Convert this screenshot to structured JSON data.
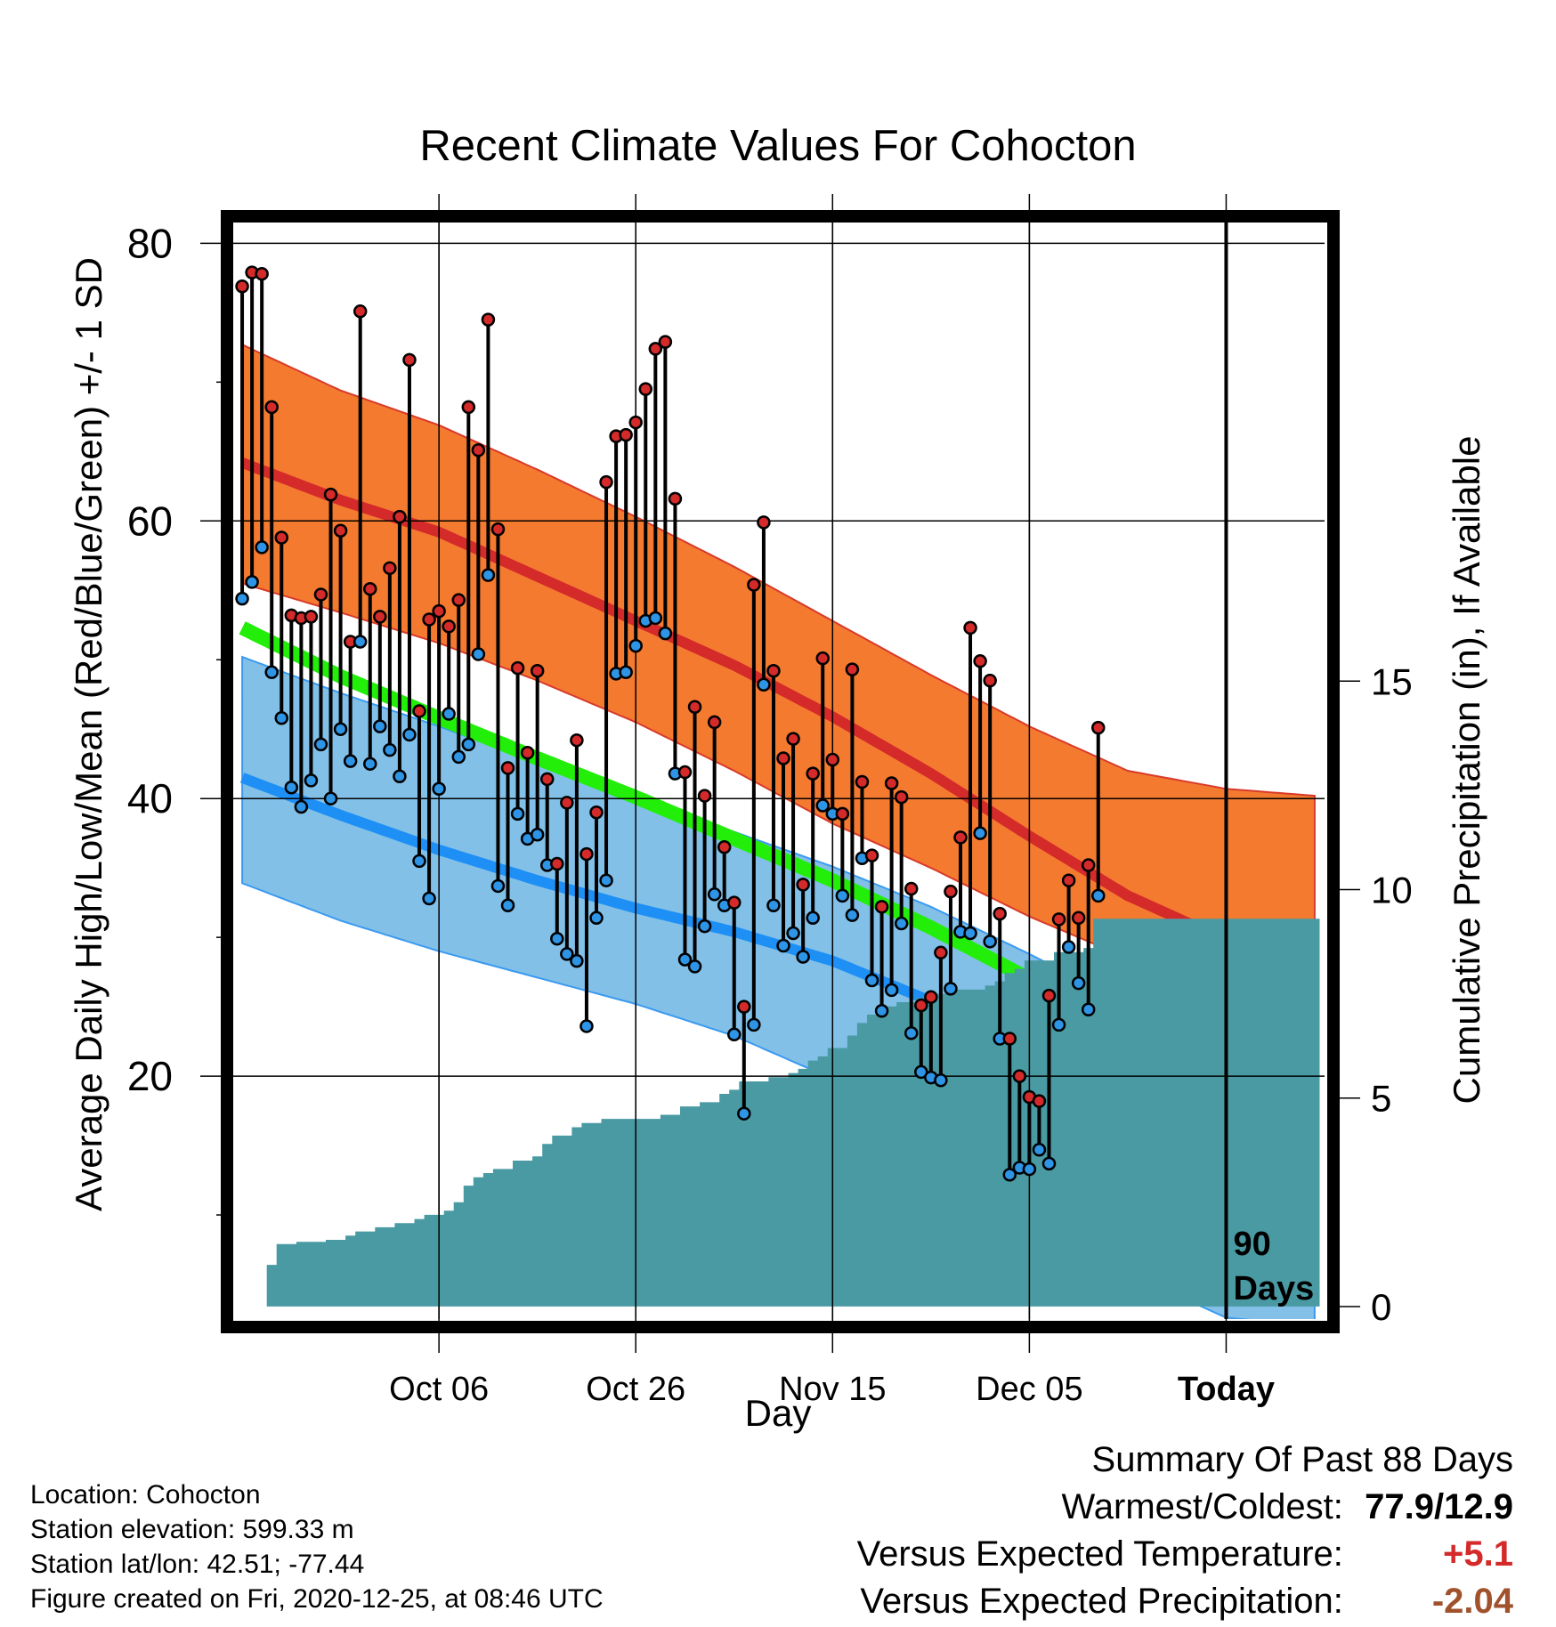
{
  "title": "Recent Climate Values For Cohocton",
  "chart_data": {
    "type": "line",
    "title": "Recent Climate Values For Cohocton",
    "xlabel": "Day",
    "ylabel": "Average Daily High/Low/Mean (Red/Blue/Green) +/- 1 SD",
    "y2label": "Cumulative Precipitation (in), If Available",
    "ylim": [
      2.5,
      81.5
    ],
    "y2lim": [
      -0.3,
      26
    ],
    "yticks": [
      20,
      40,
      60,
      80
    ],
    "y2ticks": [
      0,
      5,
      10,
      15
    ],
    "x_tick_labels": [
      {
        "day": 10,
        "label": "Oct 06"
      },
      {
        "day": 30,
        "label": "Oct 26"
      },
      {
        "day": 50,
        "label": "Nov 15"
      },
      {
        "day": 70,
        "label": "Dec 05"
      },
      {
        "day": 90,
        "label": "Today"
      }
    ],
    "x_domain": [
      -11,
      100
    ],
    "today_marker": {
      "day": 90,
      "label": "90 Days"
    },
    "grid": true,
    "colors": {
      "high_band": "#F47A30",
      "high_mean": "#D42A2A",
      "low_band": "#82C0E8",
      "low_mean": "#1E8FF5",
      "mean": "#22EE0A",
      "overlap": "#8B1010",
      "precip": "#4A9AA4",
      "high_dot": "#D42A2A",
      "low_dot": "#2E94E6",
      "warm_value": "#D42A2A",
      "precip_value": "#A0522D"
    },
    "normals": {
      "days": [
        -10,
        0,
        10,
        20,
        30,
        40,
        50,
        60,
        70,
        80,
        90,
        99
      ],
      "high_upper": [
        72.7,
        69.4,
        66.9,
        63.7,
        60.3,
        56.7,
        52.8,
        48.9,
        45.2,
        42.0,
        40.7,
        40.2
      ],
      "high_mean": [
        64.2,
        61.5,
        59.2,
        56.0,
        52.8,
        49.6,
        45.9,
        41.8,
        37.3,
        33.0,
        29.8,
        28.6
      ],
      "high_lower": [
        55.5,
        53.4,
        51.2,
        48.5,
        45.5,
        42.0,
        38.2,
        35.0,
        31.5,
        28.5,
        26.3,
        25.0
      ],
      "mean": [
        52.3,
        48.8,
        45.8,
        42.9,
        40.1,
        37.1,
        34.1,
        30.7,
        27.0,
        23.5,
        20.8,
        19.3
      ],
      "low_upper": [
        50.2,
        47.6,
        45.2,
        42.6,
        40.0,
        37.6,
        35.1,
        32.2,
        28.8,
        25.2,
        21.9,
        20.3
      ],
      "low_mean": [
        41.5,
        38.8,
        36.3,
        34.1,
        32.1,
        30.4,
        28.3,
        25.4,
        21.6,
        17.6,
        14.5,
        13.4
      ],
      "low_lower": [
        33.9,
        31.2,
        29.0,
        27.1,
        25.2,
        22.9,
        19.8,
        15.6,
        10.6,
        5.8,
        2.6,
        2.0
      ]
    },
    "series": [
      {
        "name": "High",
        "values": [
          76.9,
          77.9,
          77.8,
          68.2,
          58.8,
          53.2,
          53.0,
          53.1,
          54.7,
          61.9,
          59.3,
          51.3,
          75.1,
          55.1,
          53.1,
          56.6,
          60.3,
          71.6,
          46.3,
          52.9,
          53.5,
          52.4,
          54.3,
          68.2,
          65.1,
          74.5,
          59.4,
          42.2,
          49.4,
          43.3,
          49.2,
          41.4,
          35.3,
          39.7,
          44.2,
          36.0,
          39.0,
          62.8,
          66.1,
          66.2,
          67.1,
          69.5,
          72.4,
          72.9,
          61.6,
          41.9,
          46.6,
          40.2,
          45.5,
          36.5,
          32.5,
          25.0,
          55.4,
          59.9,
          49.2,
          42.9,
          44.3,
          33.8,
          41.8,
          50.1,
          42.8,
          38.9,
          49.3,
          41.2,
          35.9,
          32.2,
          41.1,
          40.1,
          33.5,
          25.1,
          25.7,
          28.9,
          33.3,
          37.2,
          52.3,
          49.9,
          48.5,
          31.7,
          22.7,
          20.0,
          18.5,
          18.2,
          25.8,
          31.3,
          34.1,
          31.4,
          35.2,
          45.1
        ]
      },
      {
        "name": "Low",
        "values": [
          54.4,
          55.6,
          58.1,
          49.1,
          45.8,
          40.8,
          39.4,
          41.3,
          43.9,
          40.0,
          45.0,
          42.7,
          51.3,
          42.5,
          45.2,
          43.5,
          41.6,
          44.6,
          35.5,
          32.8,
          40.7,
          46.1,
          43.0,
          43.9,
          50.4,
          56.1,
          33.7,
          32.3,
          38.9,
          37.1,
          37.4,
          35.2,
          29.9,
          28.8,
          28.3,
          23.6,
          31.4,
          34.1,
          49.0,
          49.1,
          51.0,
          52.8,
          53.0,
          51.9,
          41.8,
          28.4,
          27.9,
          30.8,
          33.1,
          32.3,
          23.0,
          17.3,
          23.7,
          48.2,
          32.3,
          29.4,
          30.3,
          28.6,
          31.4,
          39.5,
          38.9,
          33.0,
          31.6,
          35.7,
          26.9,
          24.7,
          26.2,
          31.0,
          23.1,
          20.3,
          19.9,
          19.7,
          26.3,
          30.4,
          30.3,
          37.5,
          29.7,
          22.7,
          12.9,
          13.4,
          13.3,
          14.7,
          13.7,
          23.7,
          29.3,
          26.7,
          24.8,
          33.0
        ]
      },
      {
        "name": "Cumulative Precipitation",
        "values": [
          0.0,
          0.0,
          0.0,
          1.0,
          1.5,
          1.5,
          1.55,
          1.55,
          1.55,
          1.6,
          1.6,
          1.7,
          1.8,
          1.8,
          1.9,
          1.9,
          2.0,
          2.0,
          2.1,
          2.2,
          2.2,
          2.3,
          2.5,
          2.9,
          3.1,
          3.2,
          3.3,
          3.3,
          3.5,
          3.5,
          3.6,
          3.9,
          4.1,
          4.1,
          4.3,
          4.4,
          4.4,
          4.5,
          4.5,
          4.5,
          4.5,
          4.5,
          4.5,
          4.6,
          4.6,
          4.8,
          4.8,
          4.9,
          4.9,
          5.1,
          5.2,
          5.4,
          5.4,
          5.4,
          5.5,
          5.5,
          5.6,
          5.7,
          5.9,
          6.0,
          6.2,
          6.2,
          6.5,
          6.8,
          7.0,
          7.2,
          7.2,
          7.3,
          7.3,
          7.4,
          7.5,
          7.5,
          7.5,
          7.6,
          7.6,
          7.6,
          7.7,
          7.8,
          8.0,
          8.1,
          8.3,
          8.3,
          8.3,
          8.5,
          8.5,
          8.5,
          8.6,
          9.3
        ]
      }
    ]
  },
  "footer": {
    "location": "Location: Cohocton",
    "elevation": "Station elevation: 599.33 m",
    "latlon": "Station lat/lon: 42.51; -77.44",
    "created": "Figure created on Fri, 2020-12-25, at 08:46 UTC"
  },
  "summary": {
    "heading": "Summary Of Past 88 Days",
    "warmest_label": "Warmest/Coldest:",
    "warmest_value": "77.9/12.9",
    "temp_label": "Versus Expected Temperature:",
    "temp_value": "+5.1",
    "precip_label": "Versus Expected Precipitation:",
    "precip_value": "-2.04"
  }
}
